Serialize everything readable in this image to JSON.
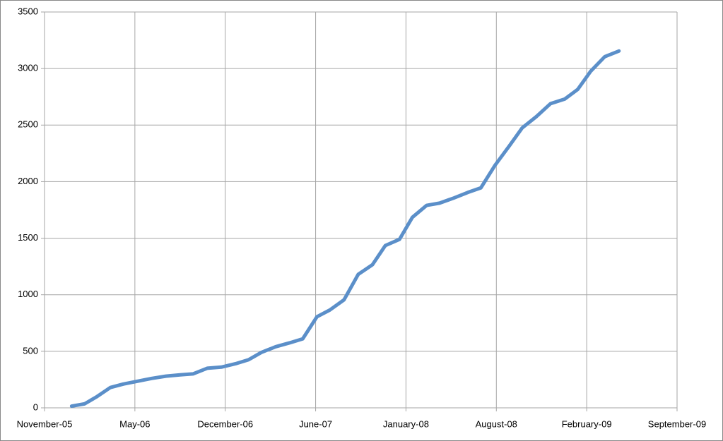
{
  "chart_data": {
    "type": "line",
    "x": [
      2.1,
      3.1,
      4.0,
      5.1,
      6.1,
      7.2,
      8.3,
      9.4,
      10.5,
      11.5,
      12.6,
      13.7,
      14.8,
      15.8,
      16.8,
      17.9,
      19.0,
      20.0,
      21.1,
      22.1,
      23.2,
      24.3,
      25.4,
      26.4,
      27.5,
      28.5,
      29.6,
      30.6,
      31.7,
      32.8,
      33.8,
      34.9,
      36.0,
      37.0,
      38.1,
      39.2,
      40.3,
      41.3,
      42.3,
      43.4,
      44.5
    ],
    "series": [
      {
        "color": "#5b8fc9",
        "values": [
          15,
          35,
          95,
          180,
          210,
          235,
          260,
          280,
          292,
          300,
          350,
          360,
          390,
          425,
          490,
          540,
          575,
          610,
          805,
          865,
          955,
          1180,
          1265,
          1435,
          1490,
          1685,
          1790,
          1810,
          1855,
          1905,
          1945,
          2145,
          2315,
          2475,
          2575,
          2690,
          2730,
          2815,
          2975,
          3105,
          3155
        ]
      }
    ],
    "xlim": [
      0,
      49
    ],
    "xticks": [
      {
        "value": 0,
        "label": "November-05"
      },
      {
        "value": 7,
        "label": "May-06"
      },
      {
        "value": 14,
        "label": "December-06"
      },
      {
        "value": 21,
        "label": "June-07"
      },
      {
        "value": 28,
        "label": "January-08"
      },
      {
        "value": 35,
        "label": "August-08"
      },
      {
        "value": 42,
        "label": "February-09"
      },
      {
        "value": 49,
        "label": "September-09"
      }
    ],
    "ylim": [
      0,
      3500
    ],
    "yticks": [
      0,
      500,
      1000,
      1500,
      2000,
      2500,
      3000,
      3500
    ],
    "grid": true
  }
}
